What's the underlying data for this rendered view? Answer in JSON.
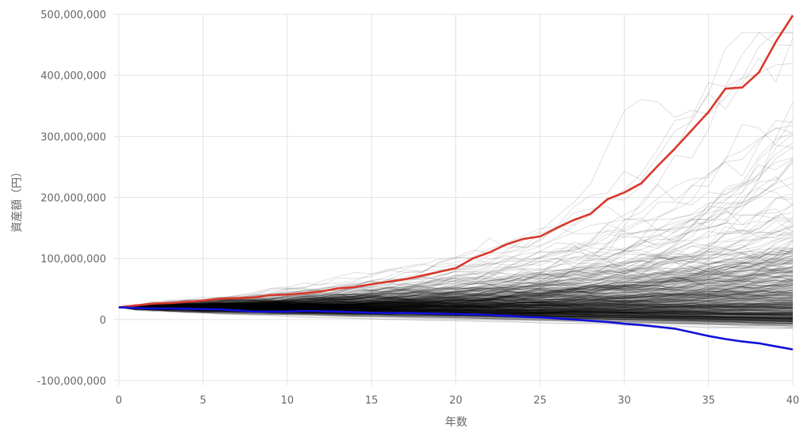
{
  "chart_data": {
    "type": "line",
    "xlabel": "年数",
    "ylabel": "資産額（円）",
    "xlim": [
      0,
      40
    ],
    "ylim": [
      -100000000,
      500000000
    ],
    "x_ticks": [
      "0",
      "5",
      "10",
      "15",
      "20",
      "25",
      "30",
      "35",
      "40"
    ],
    "y_ticks": [
      "-100,000,000",
      "0",
      "100,000,000",
      "200,000,000",
      "300,000,000",
      "400,000,000",
      "500,000,000"
    ],
    "grid": true,
    "legend": "none",
    "colors": {
      "max_series": "#d9372b",
      "min_series": "#1010d8",
      "simulations": "#000000"
    },
    "simulation_count": 500,
    "simulation_start": 20000000,
    "series": [
      {
        "role": "max",
        "x": [
          0,
          1,
          2,
          3,
          4,
          5,
          6,
          7,
          8,
          9,
          10,
          11,
          12,
          13,
          14,
          15,
          16,
          17,
          18,
          19,
          20,
          21,
          22,
          23,
          24,
          25,
          26,
          27,
          28,
          29,
          30,
          31,
          32,
          33,
          34,
          35,
          36,
          37,
          38,
          39,
          40
        ],
        "values": [
          20000000,
          23000000,
          26000000,
          27000000,
          29000000,
          31000000,
          34000000,
          35000000,
          36000000,
          40000000,
          41000000,
          43000000,
          46000000,
          51000000,
          53000000,
          58000000,
          62000000,
          66000000,
          72000000,
          78000000,
          84000000,
          100000000,
          110000000,
          123000000,
          132000000,
          136000000,
          150000000,
          163000000,
          173000000,
          197000000,
          208000000,
          223000000,
          252000000,
          280000000,
          310000000,
          340000000,
          378000000,
          380000000,
          405000000,
          455000000,
          498000000
        ]
      },
      {
        "role": "min",
        "x": [
          0,
          1,
          2,
          3,
          4,
          5,
          6,
          7,
          8,
          9,
          10,
          11,
          12,
          13,
          14,
          15,
          16,
          17,
          18,
          19,
          20,
          21,
          22,
          23,
          24,
          25,
          26,
          27,
          28,
          29,
          30,
          31,
          32,
          33,
          34,
          35,
          36,
          37,
          38,
          39,
          40
        ],
        "values": [
          20000000,
          19000000,
          18000000,
          18000000,
          17500000,
          17000000,
          16500000,
          15000000,
          13000000,
          13000000,
          13000000,
          14000000,
          13500000,
          13000000,
          12000000,
          11000000,
          10500000,
          11000000,
          10000000,
          9500000,
          9000000,
          8500000,
          7500000,
          6000000,
          4500000,
          3500000,
          2000000,
          0,
          -2000000,
          -4000000,
          -7000000,
          -9000000,
          -12000000,
          -15000000,
          -21000000,
          -27000000,
          -32000000,
          -36000000,
          -39000000,
          -44000000,
          -49000000
        ]
      }
    ]
  }
}
